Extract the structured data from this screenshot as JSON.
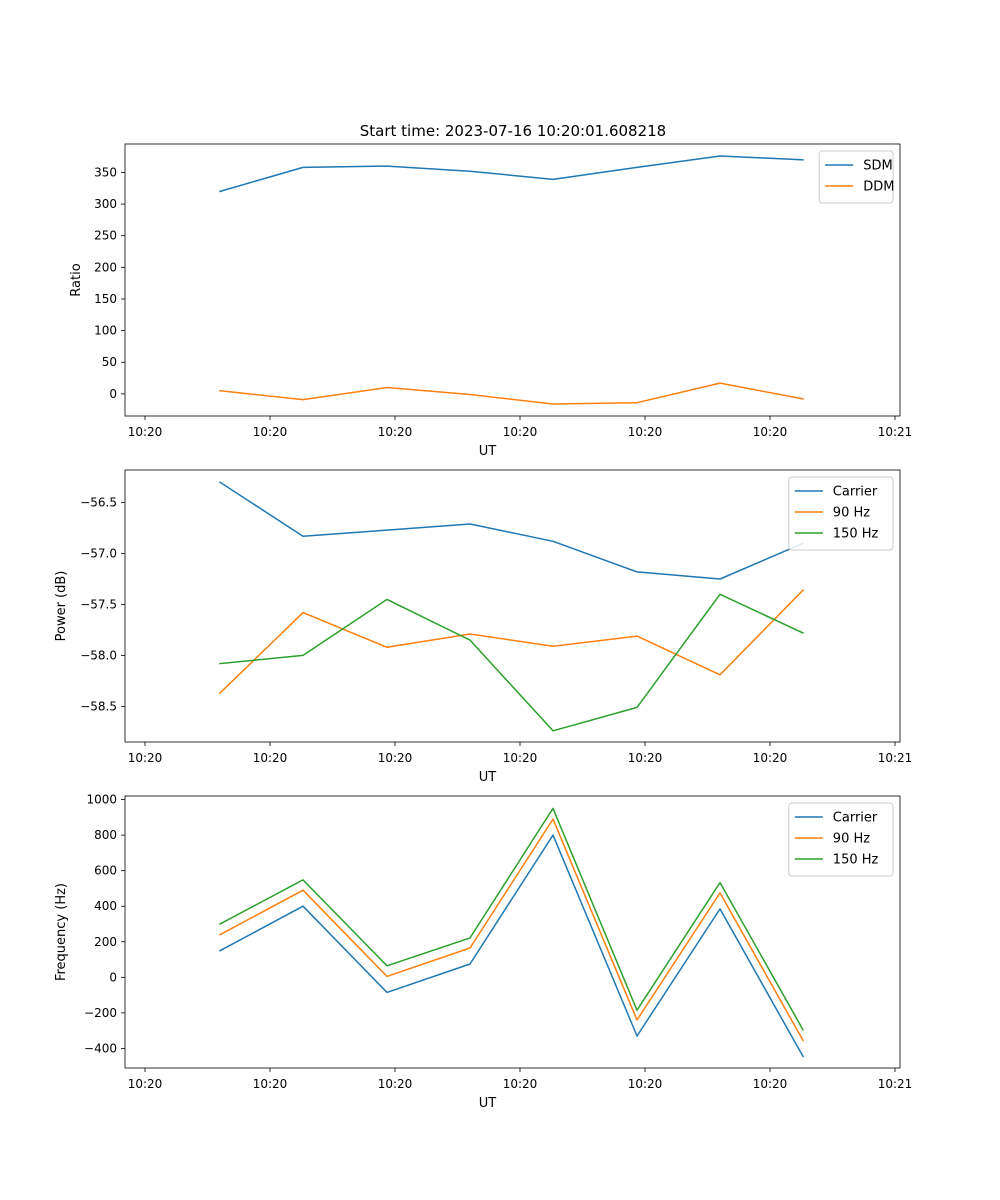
{
  "figure": {
    "title": "Start time: 2023-07-16 10:20:01.608218"
  },
  "chart_data": [
    {
      "type": "line",
      "xlabel": "UT",
      "ylabel": "Ratio",
      "x": [
        0.75,
        1.58,
        2.42,
        3.25,
        4.08,
        4.92,
        5.75,
        6.58
      ],
      "xlim": [
        -0.2,
        7.55
      ],
      "xticks": [
        0,
        1.25,
        2.5,
        3.75,
        5,
        6.25,
        7.5
      ],
      "xtick_labels": [
        "10:20",
        "10:20",
        "10:20",
        "10:20",
        "10:20",
        "10:20",
        "10:21"
      ],
      "ylim": [
        -35,
        395
      ],
      "yticks": [
        0,
        50,
        100,
        150,
        200,
        250,
        300,
        350
      ],
      "ytick_labels": [
        "0",
        "50",
        "100",
        "150",
        "200",
        "250",
        "300",
        "350"
      ],
      "legend_position": "top-right",
      "series": [
        {
          "name": "SDM",
          "color": "#1f77b4",
          "values": [
            320,
            358,
            360,
            352,
            339,
            358,
            376,
            370
          ]
        },
        {
          "name": "DDM",
          "color": "#ff7f0e",
          "values": [
            5,
            -9,
            10,
            -1,
            -16,
            -14,
            17,
            -8
          ]
        }
      ]
    },
    {
      "type": "line",
      "xlabel": "UT",
      "ylabel": "Power (dB)",
      "x": [
        0.75,
        1.58,
        2.42,
        3.25,
        4.08,
        4.92,
        5.75,
        6.58
      ],
      "xlim": [
        -0.2,
        7.55
      ],
      "xticks": [
        0,
        1.25,
        2.5,
        3.75,
        5,
        6.25,
        7.5
      ],
      "xtick_labels": [
        "10:20",
        "10:20",
        "10:20",
        "10:20",
        "10:20",
        "10:20",
        "10:21"
      ],
      "ylim": [
        -58.85,
        -56.18
      ],
      "yticks": [
        -58.5,
        -58.0,
        -57.5,
        -57.0,
        -56.5
      ],
      "ytick_labels": [
        "−58.5",
        "−58.0",
        "−57.5",
        "−57.0",
        "−56.5"
      ],
      "legend_position": "top-right",
      "series": [
        {
          "name": "Carrier",
          "color": "#1f77b4",
          "values": [
            -56.3,
            -56.83,
            -56.77,
            -56.71,
            -56.88,
            -57.18,
            -57.25,
            -56.9
          ]
        },
        {
          "name": "90 Hz",
          "color": "#ff7f0e",
          "values": [
            -58.37,
            -57.58,
            -57.92,
            -57.79,
            -57.91,
            -57.81,
            -58.19,
            -57.36
          ]
        },
        {
          "name": "150 Hz",
          "color": "#2ca02c",
          "values": [
            -58.08,
            -58.0,
            -57.45,
            -57.85,
            -58.74,
            -58.51,
            -57.4,
            -57.78
          ]
        }
      ]
    },
    {
      "type": "line",
      "xlabel": "UT",
      "ylabel": "Frequency (Hz)",
      "x": [
        0.75,
        1.58,
        2.42,
        3.25,
        4.08,
        4.92,
        5.75,
        6.58
      ],
      "xlim": [
        -0.2,
        7.55
      ],
      "xticks": [
        0,
        1.25,
        2.5,
        3.75,
        5,
        6.25,
        7.5
      ],
      "xtick_labels": [
        "10:20",
        "10:20",
        "10:20",
        "10:20",
        "10:20",
        "10:20",
        "10:21"
      ],
      "ylim": [
        -510,
        1020
      ],
      "yticks": [
        -400,
        -200,
        0,
        200,
        400,
        600,
        800,
        1000
      ],
      "ytick_labels": [
        "−400",
        "−200",
        "0",
        "200",
        "400",
        "600",
        "800",
        "1000"
      ],
      "legend_position": "top-right",
      "series": [
        {
          "name": "Carrier",
          "color": "#1f77b4",
          "values": [
            150,
            400,
            -85,
            75,
            800,
            -330,
            385,
            -445
          ]
        },
        {
          "name": "90 Hz",
          "color": "#ff7f0e",
          "values": [
            240,
            490,
            5,
            165,
            890,
            -240,
            475,
            -355
          ]
        },
        {
          "name": "150 Hz",
          "color": "#2ca02c",
          "values": [
            300,
            548,
            65,
            222,
            950,
            -185,
            533,
            -295
          ]
        }
      ]
    }
  ]
}
